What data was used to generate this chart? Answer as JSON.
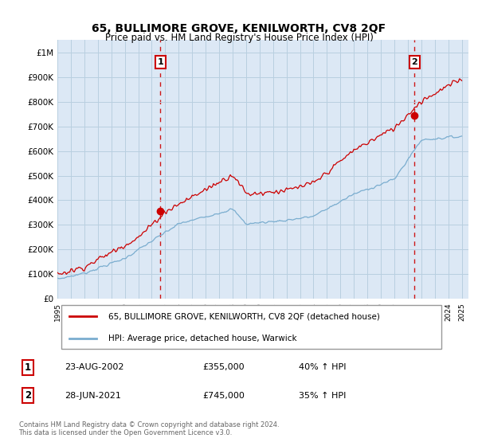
{
  "title": "65, BULLIMORE GROVE, KENILWORTH, CV8 2QF",
  "subtitle": "Price paid vs. HM Land Registry's House Price Index (HPI)",
  "ylabel_ticks": [
    "£0",
    "£100K",
    "£200K",
    "£300K",
    "£400K",
    "£500K",
    "£600K",
    "£700K",
    "£800K",
    "£900K",
    "£1M"
  ],
  "ytick_values": [
    0,
    100000,
    200000,
    300000,
    400000,
    500000,
    600000,
    700000,
    800000,
    900000,
    1000000
  ],
  "ylim": [
    0,
    1050000
  ],
  "xlim_start": 1995.0,
  "xlim_end": 2025.5,
  "sale1_date": 2002.64,
  "sale1_price": 355000,
  "sale2_date": 2021.49,
  "sale2_price": 745000,
  "legend_line1": "65, BULLIMORE GROVE, KENILWORTH, CV8 2QF (detached house)",
  "legend_line2": "HPI: Average price, detached house, Warwick",
  "footnote": "Contains HM Land Registry data © Crown copyright and database right 2024.\nThis data is licensed under the Open Government Licence v3.0.",
  "red_color": "#cc0000",
  "blue_color": "#7aadcf",
  "background_color": "#ffffff",
  "plot_bg_color": "#dce8f5",
  "grid_color": "#b8cfe0"
}
